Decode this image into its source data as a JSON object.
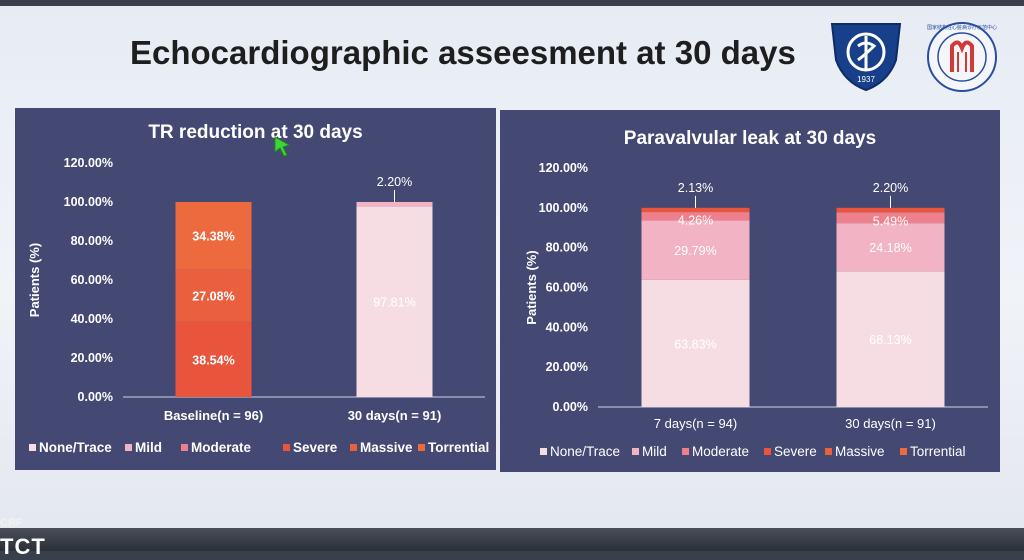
{
  "slide_title": "Echocardiographic asseesment at 30 days",
  "footer_logo": "CRF",
  "footer_logo2": "TCT",
  "left_logo": {
    "text": "1937"
  },
  "right_logo": {
    "text": "国家结构性心脏病诊疗示范中心"
  },
  "colors": {
    "panel_bg": "#444973",
    "none_trace": "#f6dde4",
    "mild": "#f2b4c4",
    "moderate": "#ee7f8c",
    "severe": "#e8543c",
    "massive": "#ea5f3e",
    "torrential": "#ec6a3e"
  },
  "chart_data": [
    {
      "type": "bar",
      "stacked": true,
      "title": "TR reduction at 30 days",
      "ylabel": "Patients (%)",
      "xlabel": "",
      "ylim": [
        0,
        120
      ],
      "yticks": [
        "0.00%",
        "20.00%",
        "40.00%",
        "60.00%",
        "80.00%",
        "100.00%",
        "120.00%"
      ],
      "categories": [
        "Baseline(n = 96)",
        "30 days(n = 91)"
      ],
      "series": [
        {
          "name": "None/Trace",
          "values": [
            0,
            97.81
          ],
          "labels": [
            "",
            "97.81%"
          ]
        },
        {
          "name": "Mild",
          "values": [
            0,
            2.2
          ],
          "labels": [
            "",
            "2.20%"
          ]
        },
        {
          "name": "Moderate",
          "values": [
            0,
            0
          ],
          "labels": [
            "",
            ""
          ]
        },
        {
          "name": "Severe",
          "values": [
            38.54,
            0
          ],
          "labels": [
            "38.54%",
            ""
          ]
        },
        {
          "name": "Massive",
          "values": [
            27.08,
            0
          ],
          "labels": [
            "27.08%",
            ""
          ]
        },
        {
          "name": "Torrential",
          "values": [
            34.38,
            0
          ],
          "labels": [
            "34.38%",
            ""
          ]
        }
      ],
      "legend": [
        "None/Trace",
        "Mild",
        "Moderate",
        "Severe",
        "Massive",
        "Torrential"
      ],
      "legend_position": "bottom"
    },
    {
      "type": "bar",
      "stacked": true,
      "title": "Paravalvular leak at 30 days",
      "ylabel": "Patients (%)",
      "xlabel": "",
      "ylim": [
        0,
        120
      ],
      "yticks": [
        "0.00%",
        "20.00%",
        "40.00%",
        "60.00%",
        "80.00%",
        "100.00%",
        "120.00%"
      ],
      "categories": [
        "7 days(n = 94)",
        "30 days(n = 91)"
      ],
      "series": [
        {
          "name": "None/Trace",
          "values": [
            63.83,
            68.13
          ],
          "labels": [
            "63.83%",
            "68.13%"
          ]
        },
        {
          "name": "Mild",
          "values": [
            29.79,
            24.18
          ],
          "labels": [
            "29.79%",
            "24.18%"
          ]
        },
        {
          "name": "Moderate",
          "values": [
            4.26,
            5.49
          ],
          "labels": [
            "4.26%",
            "5.49%"
          ]
        },
        {
          "name": "Severe",
          "values": [
            2.13,
            2.2
          ],
          "labels": [
            "2.13%",
            "2.20%"
          ]
        },
        {
          "name": "Massive",
          "values": [
            0,
            0
          ],
          "labels": [
            "",
            ""
          ]
        },
        {
          "name": "Torrential",
          "values": [
            0,
            0
          ],
          "labels": [
            "",
            ""
          ]
        }
      ],
      "legend": [
        "None/Trace",
        "Mild",
        "Moderate",
        "Severe",
        "Massive",
        "Torrential"
      ],
      "legend_position": "bottom"
    }
  ]
}
